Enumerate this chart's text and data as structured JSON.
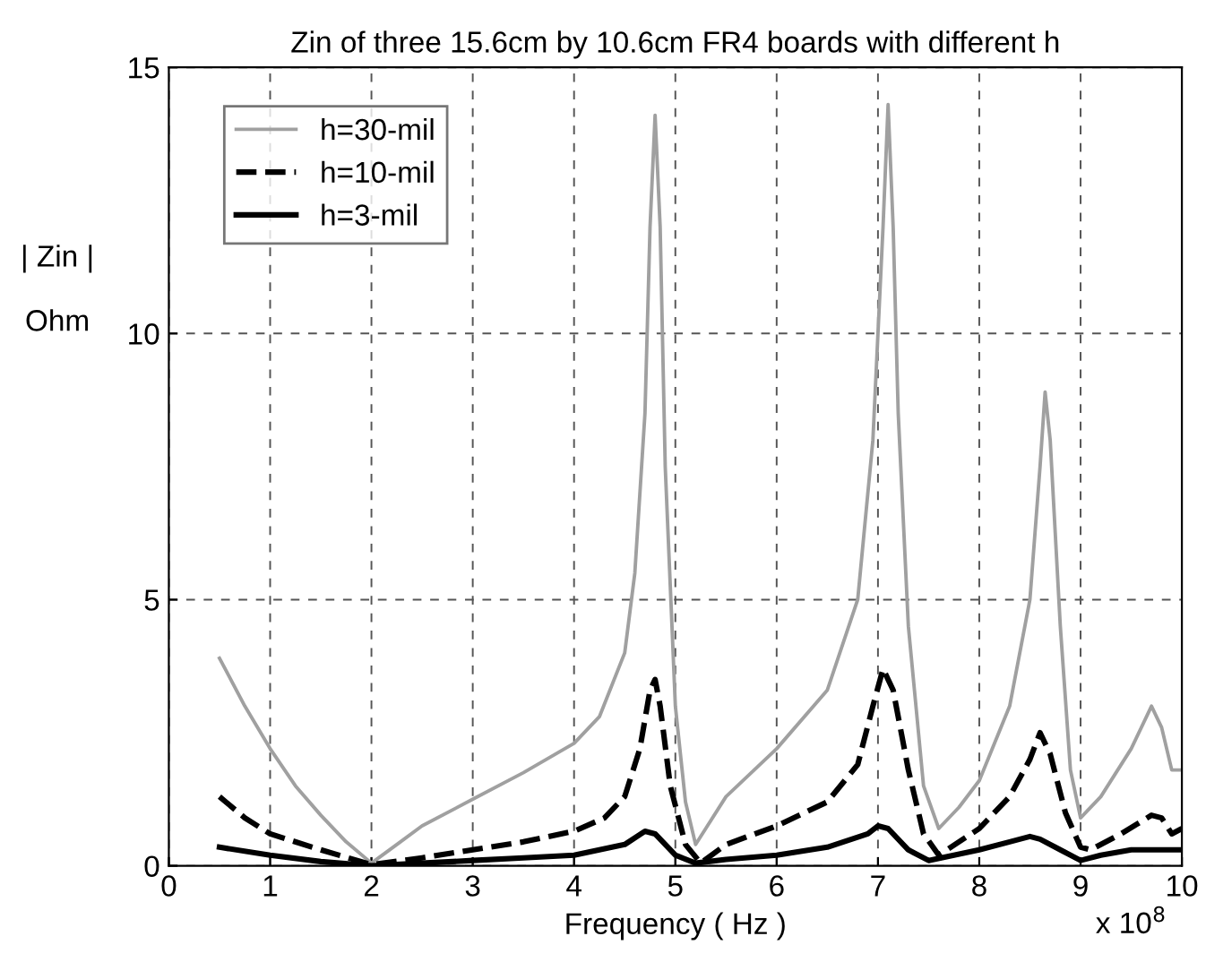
{
  "chart_data": {
    "type": "line",
    "title": "Zin of three 15.6cm by 10.6cm FR4 boards with different h",
    "xlabel": "Frequency ( Hz )",
    "ylabel": "| Zin |\n\nOhm",
    "annotations": [
      "x 10$^{8}$"
    ],
    "xlim": [
      0,
      10
    ],
    "xticks": [
      0,
      1,
      2,
      3,
      4,
      5,
      6,
      7,
      8,
      9,
      10
    ],
    "ylim": [
      0,
      15
    ],
    "yticks": [
      0,
      5,
      10,
      15
    ],
    "grid": true,
    "legend": "top left",
    "series": [
      {
        "name": "h=30-mil",
        "color": "#a0a0a0",
        "line_style": "solid",
        "x": [
          0.5,
          0.75,
          1.0,
          1.25,
          1.5,
          1.75,
          2.0,
          2.25,
          2.5,
          3.0,
          3.5,
          4.0,
          4.25,
          4.5,
          4.6,
          4.7,
          4.75,
          4.8,
          4.85,
          4.9,
          5.0,
          5.1,
          5.2,
          5.3,
          5.5,
          6.0,
          6.5,
          6.8,
          6.95,
          7.05,
          7.1,
          7.15,
          7.2,
          7.3,
          7.45,
          7.6,
          7.8,
          8.0,
          8.3,
          8.5,
          8.6,
          8.65,
          8.7,
          8.8,
          8.9,
          9.0,
          9.2,
          9.5,
          9.7,
          9.8,
          9.9,
          10
        ],
        "values": [
          3.9,
          3.0,
          2.2,
          1.5,
          0.95,
          0.45,
          0.05,
          0.4,
          0.75,
          1.25,
          1.75,
          2.3,
          2.8,
          4.0,
          5.5,
          8.5,
          12,
          14.1,
          12,
          7.5,
          3.0,
          1.2,
          0.4,
          0.7,
          1.3,
          2.2,
          3.3,
          5.0,
          8,
          12,
          14.3,
          12,
          8.5,
          4.5,
          1.5,
          0.7,
          1.1,
          1.6,
          3.0,
          5.0,
          7.5,
          8.9,
          8.0,
          4.5,
          1.8,
          0.9,
          1.3,
          2.2,
          3.0,
          2.6,
          1.8,
          1.8
        ]
      },
      {
        "name": "h=10-mil",
        "color": "#000000",
        "line_style": "dashed",
        "x": [
          0.5,
          0.75,
          1.0,
          1.5,
          2.0,
          2.5,
          3.0,
          3.5,
          4.0,
          4.3,
          4.5,
          4.65,
          4.75,
          4.8,
          4.85,
          4.95,
          5.1,
          5.25,
          5.5,
          6.0,
          6.5,
          6.8,
          6.95,
          7.05,
          7.15,
          7.3,
          7.45,
          7.6,
          8.0,
          8.3,
          8.5,
          8.6,
          8.7,
          8.85,
          9.0,
          9.1,
          9.4,
          9.7,
          9.8,
          9.9,
          10
        ],
        "values": [
          1.3,
          0.9,
          0.6,
          0.3,
          0.02,
          0.15,
          0.3,
          0.45,
          0.65,
          0.9,
          1.3,
          2.2,
          3.3,
          3.5,
          3.0,
          1.5,
          0.4,
          0.05,
          0.4,
          0.75,
          1.2,
          1.9,
          3.0,
          3.7,
          3.3,
          1.8,
          0.6,
          0.2,
          0.7,
          1.3,
          2.0,
          2.5,
          2.1,
          1.0,
          0.35,
          0.3,
          0.6,
          0.95,
          0.9,
          0.6,
          0.7
        ]
      },
      {
        "name": "h=3-mil",
        "color": "#000000",
        "line_style": "solid",
        "x": [
          0.5,
          1.0,
          1.5,
          2.0,
          2.5,
          3.0,
          3.5,
          4.0,
          4.5,
          4.7,
          4.8,
          5.0,
          5.2,
          5.5,
          6.0,
          6.5,
          6.9,
          7.0,
          7.1,
          7.3,
          7.5,
          8.0,
          8.3,
          8.5,
          8.6,
          8.8,
          9.0,
          9.2,
          9.5,
          10
        ],
        "values": [
          0.35,
          0.2,
          0.08,
          0.0,
          0.05,
          0.1,
          0.15,
          0.2,
          0.4,
          0.65,
          0.6,
          0.2,
          0.05,
          0.12,
          0.2,
          0.35,
          0.6,
          0.75,
          0.7,
          0.3,
          0.1,
          0.3,
          0.45,
          0.55,
          0.5,
          0.3,
          0.1,
          0.2,
          0.3,
          0.3
        ]
      }
    ]
  }
}
